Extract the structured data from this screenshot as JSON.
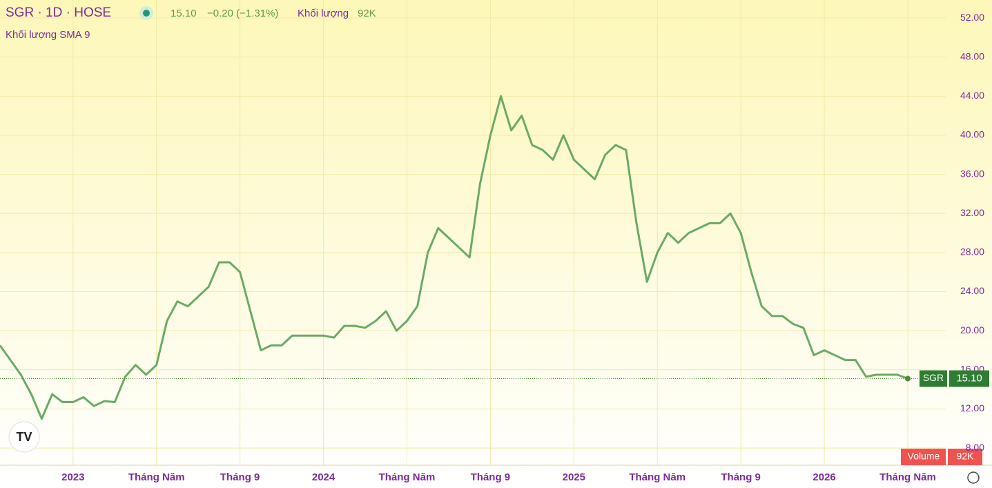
{
  "header": {
    "symbol": "SGR · 1D · HOSE",
    "price": "15.10",
    "change": "−0.20 (−1.31%)",
    "volume_label": "Khối lượng",
    "volume": "92K",
    "sma_label": "Khối lượng SMA 9",
    "volume_tag": "Volume",
    "ticker": "SGR"
  },
  "chart_data": {
    "type": "line",
    "color": "#6aaa64",
    "categories": [
      null,
      null,
      null,
      null,
      null,
      null,
      null,
      "2023",
      null,
      null,
      null,
      null,
      null,
      null,
      null,
      "Tháng Năm",
      null,
      null,
      null,
      null,
      null,
      null,
      null,
      "Tháng 9",
      null,
      null,
      null,
      null,
      null,
      null,
      null,
      "2024",
      null,
      null,
      null,
      null,
      null,
      null,
      null,
      "Tháng Năm",
      null,
      null,
      null,
      null,
      null,
      null,
      null,
      "Tháng 9",
      null,
      null,
      null,
      null,
      null,
      null,
      null,
      "2025",
      null,
      null,
      null,
      null,
      null,
      null,
      null,
      "Tháng Năm",
      null,
      null,
      null,
      null,
      null,
      null,
      null,
      "Tháng 9",
      null,
      null,
      null,
      null,
      null,
      null,
      null,
      "2026",
      null,
      null,
      null,
      null,
      null,
      null,
      null,
      "Tháng Năm"
    ],
    "values": [
      18.5,
      17,
      15.5,
      13.5,
      11,
      13.5,
      12.7,
      12.7,
      13.2,
      12.3,
      12.8,
      12.7,
      15.3,
      16.5,
      15.5,
      16.5,
      21,
      23,
      22.5,
      23.5,
      24.5,
      27,
      27,
      26,
      22,
      18,
      18.5,
      18.5,
      19.5,
      19.5,
      19.5,
      19.5,
      19.3,
      20.5,
      20.5,
      20.3,
      21,
      22,
      20,
      21,
      22.5,
      28,
      30.5,
      29.5,
      28.5,
      27.5,
      35,
      40,
      44,
      40.5,
      42,
      39,
      38.5,
      37.5,
      40,
      37.5,
      36.5,
      35.5,
      38,
      39,
      38.5,
      31,
      25,
      28,
      30,
      29,
      30,
      30.5,
      31,
      31,
      32,
      30,
      26,
      22.5,
      21.5,
      21.5,
      20.7,
      20.3,
      17.5,
      18,
      17.5,
      17,
      17,
      15.3,
      15.5,
      15.5,
      15.5,
      15.1
    ],
    "ylim": [
      6.24,
      53.84
    ],
    "yticks": [
      {
        "value": 8,
        "label": "8.00"
      },
      {
        "value": 12,
        "label": "12.00"
      },
      {
        "value": 16,
        "label": "16.00"
      },
      {
        "value": 20,
        "label": "20.00"
      },
      {
        "value": 24,
        "label": "24.00"
      },
      {
        "value": 28,
        "label": "28.00"
      },
      {
        "value": 32,
        "label": "32.00"
      },
      {
        "value": 36,
        "label": "36.00"
      },
      {
        "value": 40,
        "label": "40.00"
      },
      {
        "value": 44,
        "label": "44.00"
      },
      {
        "value": 48,
        "label": "48.00"
      },
      {
        "value": 52,
        "label": "52.00"
      }
    ],
    "grid": true
  }
}
